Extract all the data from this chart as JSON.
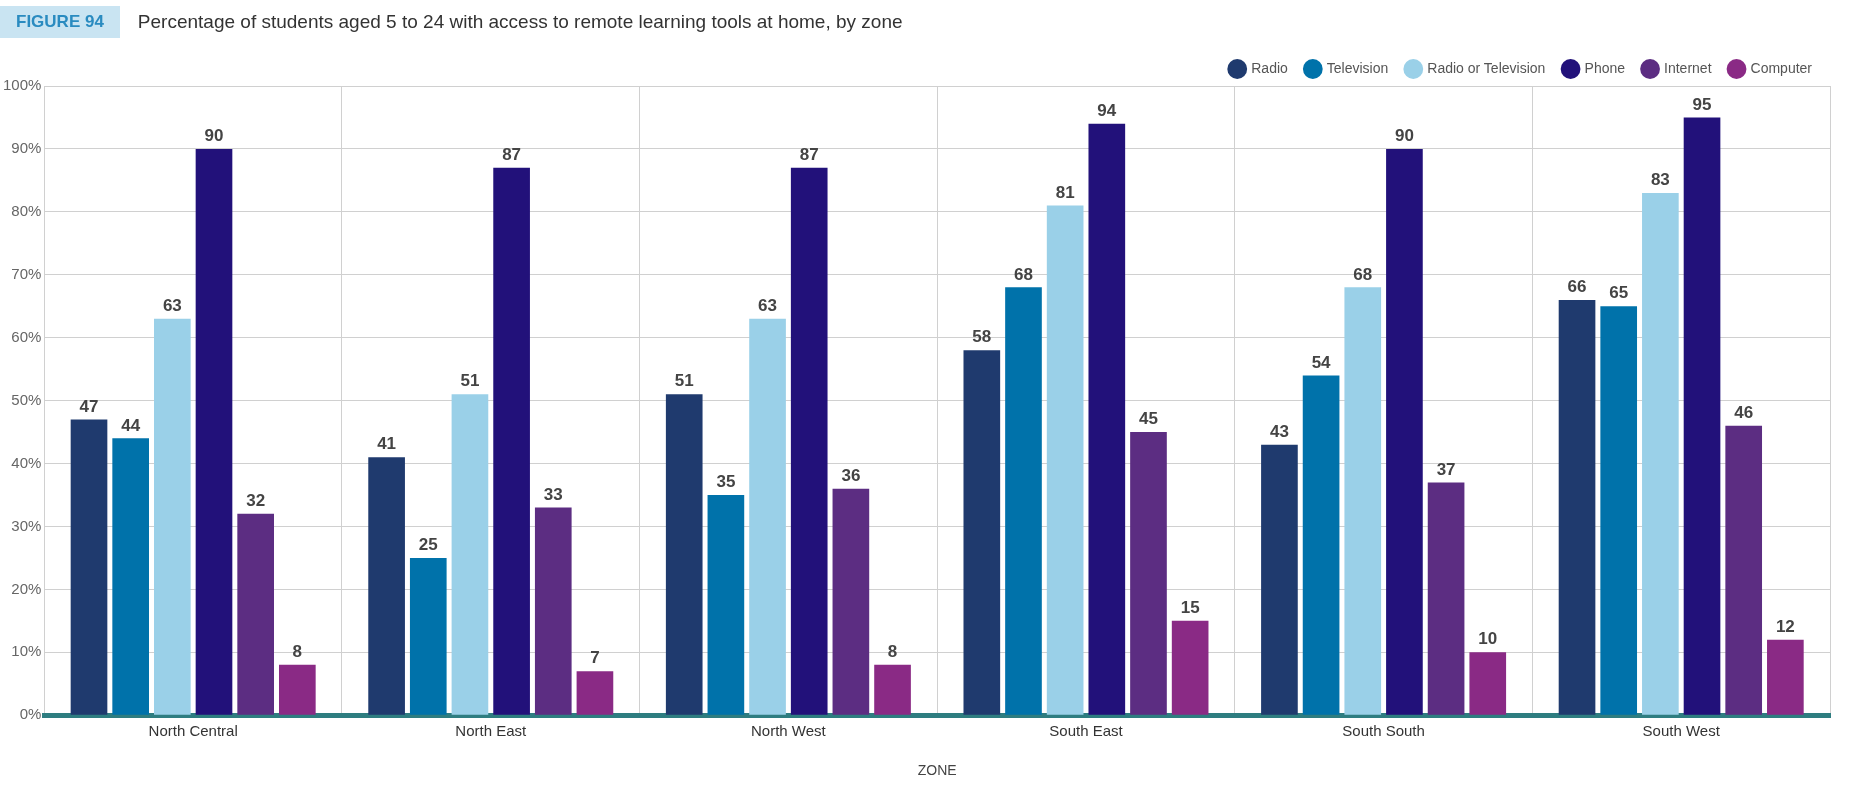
{
  "chart_data": {
    "type": "bar",
    "title": "Percentage of students aged 5 to 24 with access to remote learning tools at home, by zone",
    "annotations": [
      "FIGURE 94"
    ],
    "xlabel": "ZONE",
    "categories": [
      "North Central",
      "North East",
      "North West",
      "South East",
      "South South",
      "South West"
    ],
    "series": [
      {
        "name": "Radio",
        "color": "#1f3a6e",
        "values": [
          47,
          41,
          51,
          58,
          43,
          66
        ]
      },
      {
        "name": "Television",
        "color": "#0072aa",
        "values": [
          44,
          25,
          35,
          68,
          54,
          65
        ]
      },
      {
        "name": "Radio or Television",
        "color": "#9ad0e8",
        "values": [
          63,
          51,
          63,
          81,
          68,
          83
        ]
      },
      {
        "name": "Phone",
        "color": "#22117a",
        "values": [
          90,
          87,
          87,
          94,
          90,
          95
        ]
      },
      {
        "name": "Internet",
        "color": "#5c2d82",
        "values": [
          32,
          33,
          36,
          45,
          37,
          46
        ]
      },
      {
        "name": "Computer",
        "color": "#8a2a85",
        "values": [
          8,
          7,
          8,
          15,
          10,
          12
        ]
      }
    ],
    "ylim": [
      0,
      100
    ],
    "yticks": [
      {
        "value": 0,
        "label": "0%"
      },
      {
        "value": 10,
        "label": "10%"
      },
      {
        "value": 20,
        "label": "20%"
      },
      {
        "value": 30,
        "label": "30%"
      },
      {
        "value": 40,
        "label": "40%"
      },
      {
        "value": 50,
        "label": "50%"
      },
      {
        "value": 60,
        "label": "60%"
      },
      {
        "value": 70,
        "label": "70%"
      },
      {
        "value": 80,
        "label": "80%"
      },
      {
        "value": 90,
        "label": "90%"
      },
      {
        "value": 100,
        "label": "100%"
      }
    ],
    "grid": true,
    "legend": "top right",
    "data_labels": true
  }
}
